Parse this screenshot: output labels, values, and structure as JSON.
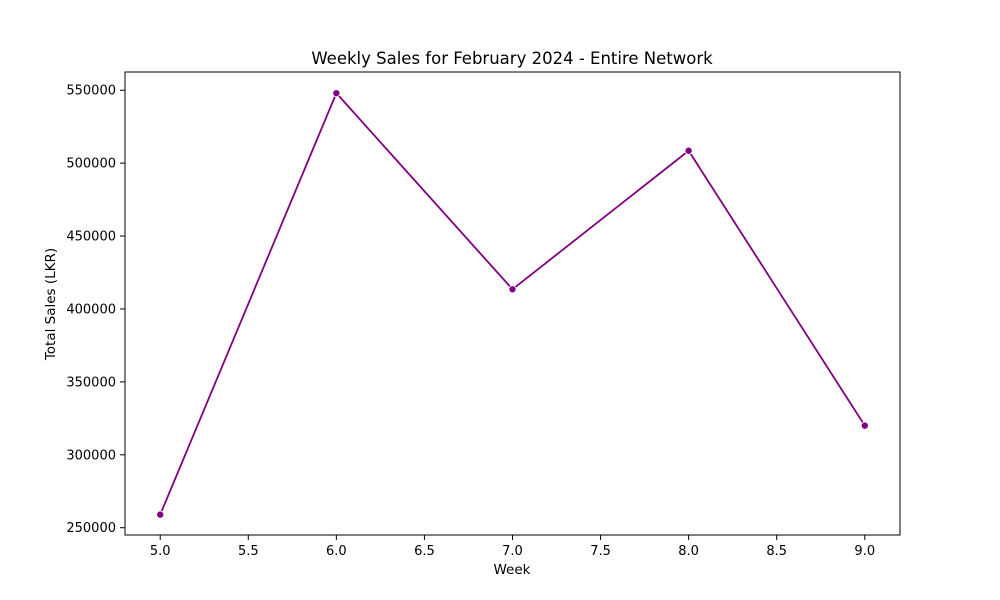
{
  "chart_data": {
    "type": "line",
    "title": "Weekly Sales for February 2024 - Entire Network",
    "xlabel": "Week",
    "ylabel": "Total Sales (LKR)",
    "x": [
      5.0,
      6.0,
      7.0,
      8.0,
      9.0
    ],
    "series": [
      {
        "values": [
          259000,
          548000,
          413500,
          508500,
          320000
        ]
      }
    ],
    "xlim": [
      4.8,
      9.2
    ],
    "ylim": [
      245000,
      562500
    ],
    "xticks": [
      "5.0",
      "5.5",
      "6.0",
      "6.5",
      "7.0",
      "7.5",
      "8.0",
      "8.5",
      "9.0"
    ],
    "yticks": [
      "250000",
      "300000",
      "350000",
      "400000",
      "450000",
      "500000",
      "550000"
    ],
    "grid": false,
    "legend": "none",
    "marker": "circle",
    "line_color": "#800080"
  }
}
